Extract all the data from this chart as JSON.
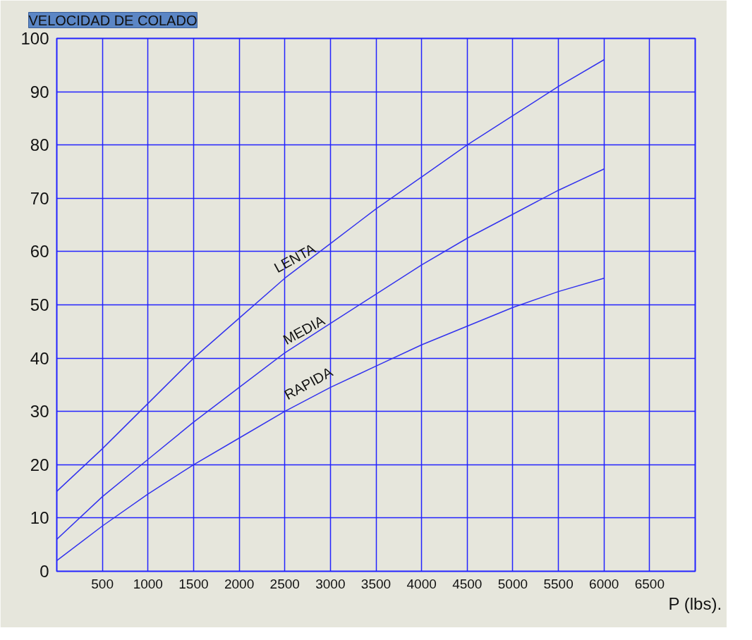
{
  "chart_data": {
    "type": "line",
    "title": "VELOCIDAD DE COLADO",
    "xlabel": "P (lbs).",
    "x": [
      0,
      500,
      1000,
      1500,
      2000,
      2500,
      3000,
      3500,
      4000,
      4500,
      5000,
      5500,
      6000
    ],
    "series": [
      {
        "name": "LENTA",
        "color": "#3333ee",
        "values": [
          15,
          23,
          31.5,
          40,
          47.5,
          55,
          61.5,
          68,
          74,
          80,
          85.5,
          91,
          96
        ]
      },
      {
        "name": "MEDIA",
        "color": "#3333ee",
        "values": [
          6,
          14,
          21,
          28,
          34.5,
          41,
          46.5,
          52,
          57.5,
          62.5,
          67,
          71.5,
          75.5
        ]
      },
      {
        "name": "RAPIDA",
        "color": "#3333ee",
        "values": [
          2,
          8.5,
          14.5,
          20,
          25,
          30,
          34.5,
          38.5,
          42.5,
          46,
          49.5,
          52.5,
          55
        ]
      }
    ],
    "xlim": [
      0,
      7000
    ],
    "ylim": [
      0,
      100
    ],
    "xticks": [
      500,
      1000,
      1500,
      2000,
      2500,
      3000,
      3500,
      4000,
      4500,
      5000,
      5500,
      6000,
      6500
    ],
    "yticks": [
      0,
      10,
      20,
      30,
      40,
      50,
      60,
      70,
      80,
      90,
      100
    ],
    "grid": true,
    "marker": "none",
    "line_style": "solid"
  }
}
